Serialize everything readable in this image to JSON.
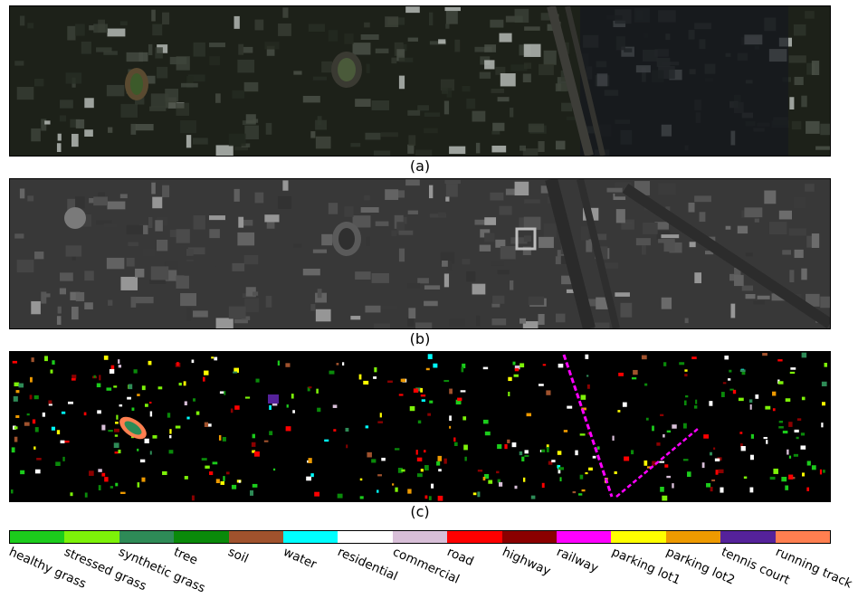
{
  "captions": {
    "a": "(a)",
    "b": "(b)",
    "c": "(c)"
  },
  "panels": {
    "a": {
      "kind": "true-color aerial image",
      "tone": "#1b1f17"
    },
    "b": {
      "kind": "grayscale LiDAR image",
      "tone": "#3a3a3a"
    },
    "c": {
      "kind": "ground-truth class map",
      "tone": "#000000"
    }
  },
  "legend": [
    {
      "label": "healthy grass",
      "color": "#1ccc1c"
    },
    {
      "label": "stressed grass",
      "color": "#7df209"
    },
    {
      "label": "synthetic grass",
      "color": "#2e8b57"
    },
    {
      "label": "tree",
      "color": "#0a8a0a"
    },
    {
      "label": "soil",
      "color": "#a0522d"
    },
    {
      "label": "water",
      "color": "#00ffff"
    },
    {
      "label": "residential",
      "color": "#ffffff"
    },
    {
      "label": "commercial",
      "color": "#d8bfd8"
    },
    {
      "label": "road",
      "color": "#ff0000"
    },
    {
      "label": "highway",
      "color": "#8b0000"
    },
    {
      "label": "railway",
      "color": "#ff00ff"
    },
    {
      "label": "parking lot1",
      "color": "#ffff00"
    },
    {
      "label": "parking lot2",
      "color": "#ee9a00"
    },
    {
      "label": "tennis court",
      "color": "#55229a"
    },
    {
      "label": "running track",
      "color": "#ff7f50"
    }
  ]
}
